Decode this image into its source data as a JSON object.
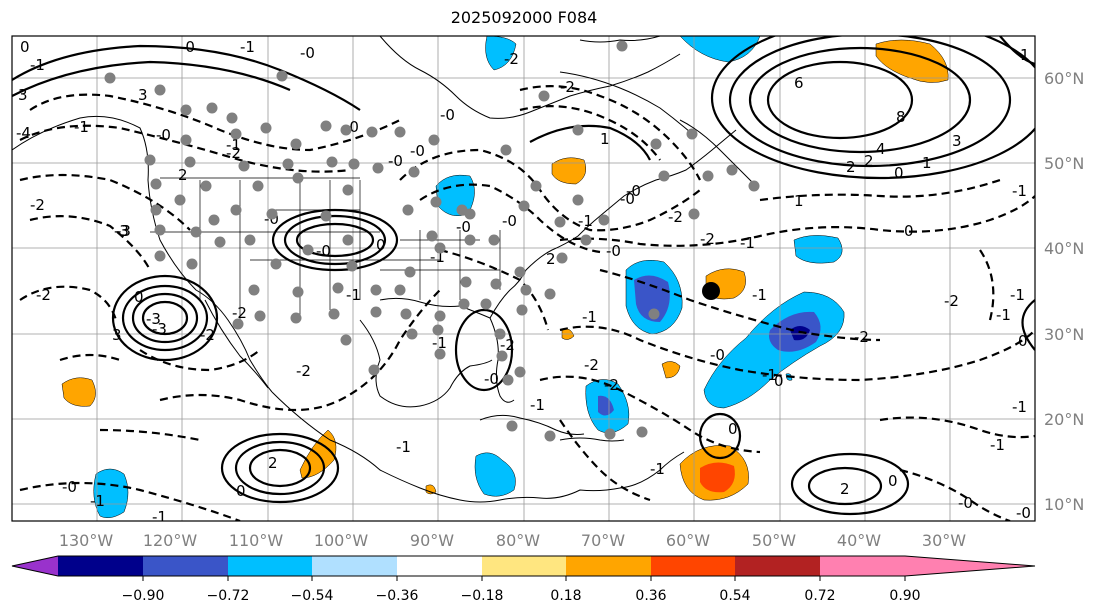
{
  "title": "2025092000 F084",
  "map": {
    "lon_labels": [
      "130°W",
      "120°W",
      "110°W",
      "100°W",
      "90°W",
      "80°W",
      "70°W",
      "60°W",
      "50°W",
      "40°W",
      "30°W"
    ],
    "lat_labels": [
      "60°N",
      "50°N",
      "40°N",
      "30°N",
      "20°N",
      "10°N"
    ],
    "contour_labels": [
      "0",
      "3",
      "-1",
      "-4",
      "3",
      "-1",
      "-2",
      "-3",
      "-0",
      "-1",
      "-1",
      "2",
      "-3",
      "-0",
      "3",
      "-2",
      "-0",
      "-0",
      "1",
      "-2",
      "-2",
      "-2",
      "-2",
      "-1",
      "-0",
      "-3",
      "-0",
      "-1",
      "-0",
      "-2",
      "-2",
      "-1",
      "-2",
      "-2",
      "-2",
      "-1",
      "2",
      "-1",
      "-0",
      "-1",
      "0",
      "-1",
      "-0",
      "-0",
      "-1",
      "6",
      "8",
      "4",
      "3",
      "2",
      "2",
      "1",
      "0",
      "1",
      "-1",
      "0",
      "-2",
      "-2",
      "-1",
      "-1",
      "0",
      "2",
      "-1",
      "0",
      "-1",
      "-0",
      "0",
      "-1",
      "-0",
      "1",
      "-1",
      "2",
      "0",
      "-0",
      "-0",
      "-1",
      "-0",
      "-0",
      "-0",
      "-2",
      "-1",
      "-0",
      "-0",
      "-1",
      "0",
      "-3",
      "-2",
      "0",
      "1"
    ]
  },
  "colorbar": {
    "ticks": [
      "−0.90",
      "−0.72",
      "−0.54",
      "−0.36",
      "−0.18",
      "0.18",
      "0.36",
      "0.54",
      "0.72",
      "0.90"
    ],
    "colors": [
      "#9932cc",
      "#00008b",
      "#3a55c8",
      "#00bfff",
      "#b0e0ff",
      "#ffffff",
      "#ffe680",
      "#ffa500",
      "#ff4500",
      "#b22222",
      "#ff80b0"
    ]
  },
  "colors": {
    "neg_strong": "#3a55c8",
    "neg_deep": "#00008b",
    "neg_mid": "#00bfff",
    "pos_mid": "#ffa500",
    "pos_strong": "#ff4500",
    "station_dot": "#808080",
    "storm_marker": "#000000"
  }
}
